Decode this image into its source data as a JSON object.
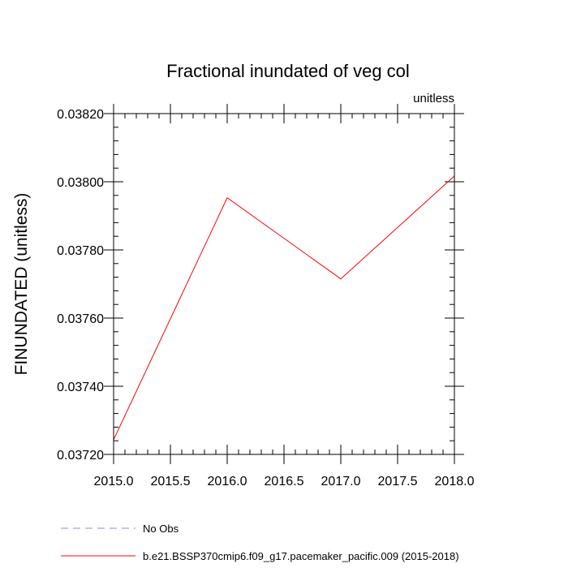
{
  "chart_data": {
    "type": "line",
    "title": "Fractional inundated of veg col",
    "units_label": "unitless",
    "xlabel": "",
    "ylabel": "FINUNDATED  (unitless)",
    "xlim": [
      2015.0,
      2018.0
    ],
    "ylim": [
      0.0372,
      0.0382
    ],
    "x_ticks": [
      2015.0,
      2015.5,
      2016.0,
      2016.5,
      2017.0,
      2017.5,
      2018.0
    ],
    "x_tick_labels": [
      "2015.0",
      "2015.5",
      "2016.0",
      "2016.5",
      "2017.0",
      "2017.5",
      "2018.0"
    ],
    "y_ticks": [
      0.0372,
      0.0374,
      0.0376,
      0.0378,
      0.038,
      0.0382
    ],
    "y_tick_labels": [
      "0.03720",
      "0.03740",
      "0.03760",
      "0.03780",
      "0.03800",
      "0.03820"
    ],
    "grid": false,
    "legend_placement": "bottom",
    "series": [
      {
        "name": "b.e21.BSSP370cmip6.f09_g17.pacemaker_pacific.009 (2015-2018)",
        "color": "#ff0000",
        "dash": "solid",
        "x": [
          2015.0,
          2016.0,
          2017.0,
          2018.0
        ],
        "y": [
          0.037243,
          0.037953,
          0.037715,
          0.038017
        ]
      }
    ],
    "legend": [
      {
        "label": "No Obs",
        "color": "#8a8aff",
        "dash": "dashed"
      },
      {
        "label": "b.e21.BSSP370cmip6.f09_g17.pacemaker_pacific.009 (2015-2018)",
        "color": "#ff0000",
        "dash": "solid"
      }
    ]
  }
}
